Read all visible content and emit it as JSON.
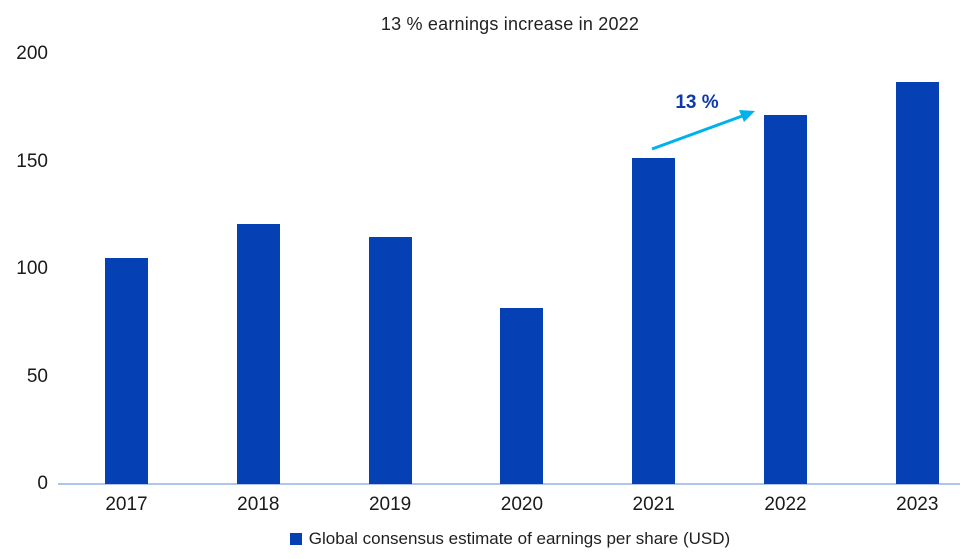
{
  "title": "13 % earnings increase in 2022",
  "annotation": {
    "label": "13 %"
  },
  "legend": {
    "label": "Global consensus estimate of earnings per share (USD)"
  },
  "colors": {
    "bar": "#0540b4",
    "arrow": "#00b2ec",
    "annotation_text": "#0d3aa6",
    "axis_line": "#aec6e8",
    "title_text": "#222222",
    "tick_text": "#1a1a1a"
  },
  "chart_data": {
    "type": "bar",
    "title": "13 % earnings increase in 2022",
    "categories": [
      "2017",
      "2018",
      "2019",
      "2020",
      "2021",
      "2022",
      "2023"
    ],
    "values": [
      105,
      121,
      115,
      82,
      152,
      172,
      187
    ],
    "series_name": "Global consensus estimate of earnings per share (USD)",
    "xlabel": "",
    "ylabel": "",
    "y_ticks": [
      0,
      50,
      100,
      150,
      200
    ],
    "ylim": [
      0,
      200
    ],
    "grid": false,
    "legend_position": "bottom",
    "bar_color": "#0540b4",
    "annotation": {
      "text": "13 %",
      "from_category": "2021",
      "to_category": "2022",
      "arrow_color": "#00b2ec"
    }
  }
}
